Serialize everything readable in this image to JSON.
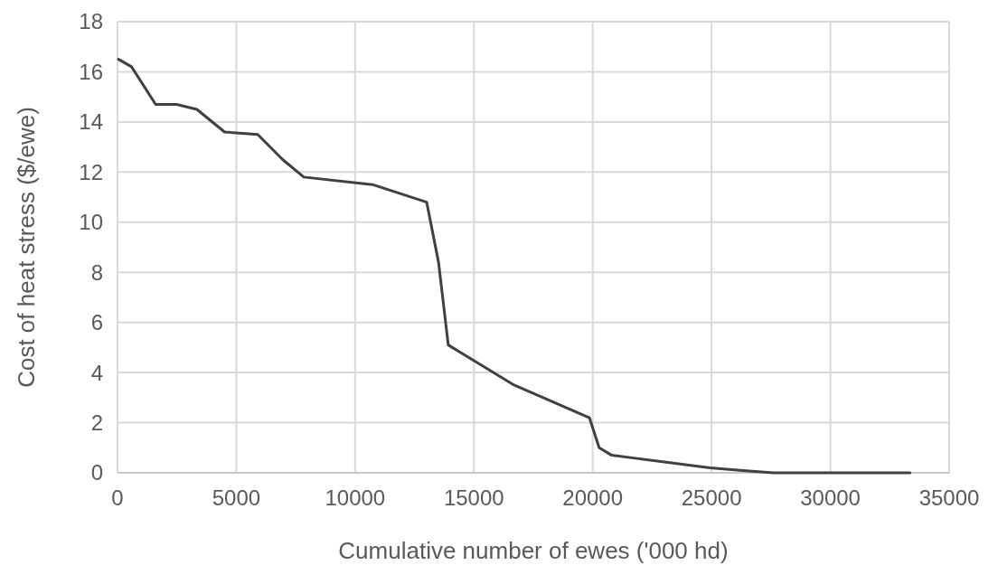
{
  "chart_data": {
    "type": "line",
    "xlabel": "Cumulative number of ewes ('000 hd)",
    "ylabel": "Cost of heat stress ($/ewe)",
    "x": [
      45,
      590,
      1605,
      2490,
      3340,
      4505,
      5900,
      6950,
      7840,
      10730,
      13010,
      13510,
      13920,
      16690,
      19860,
      20270,
      20800,
      21640,
      24940,
      26200,
      27600,
      33350
    ],
    "series": [
      {
        "color": "#404040",
        "values": [
          16.5,
          16.2,
          14.7,
          14.7,
          14.5,
          13.6,
          13.5,
          12.5,
          11.8,
          11.5,
          10.8,
          8.4,
          5.1,
          3.5,
          2.2,
          1.0,
          0.7,
          0.6,
          0.2,
          0.1,
          0,
          0
        ]
      }
    ],
    "xlim": [
      0,
      35000
    ],
    "xticks": [
      0,
      5000,
      10000,
      15000,
      20000,
      25000,
      30000,
      35000
    ],
    "ylim": [
      0,
      18
    ],
    "yticks": [
      0,
      2,
      4,
      6,
      8,
      10,
      12,
      14,
      16,
      18
    ],
    "grid": true,
    "marker": "none",
    "line_style": "solid"
  }
}
